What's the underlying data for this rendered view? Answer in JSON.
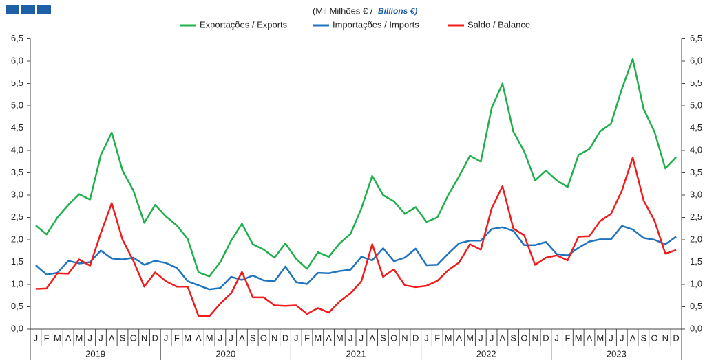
{
  "chart_data": {
    "type": "line",
    "subtitle": "(Mil Milhões € / ",
    "subtitle_en": "Billions €)",
    "categories": [
      "J",
      "F",
      "M",
      "A",
      "M",
      "J",
      "J",
      "A",
      "S",
      "O",
      "N",
      "D",
      "J",
      "F",
      "M",
      "A",
      "M",
      "J",
      "J",
      "A",
      "S",
      "O",
      "N",
      "D",
      "J",
      "F",
      "M",
      "A",
      "M",
      "J",
      "J",
      "A",
      "S",
      "O",
      "N",
      "D",
      "J",
      "F",
      "M",
      "A",
      "M",
      "J",
      "J",
      "A",
      "S",
      "O",
      "N",
      "D",
      "J",
      "F",
      "M",
      "A",
      "M",
      "J",
      "J",
      "A",
      "S",
      "O",
      "N",
      "D"
    ],
    "years": [
      "2019",
      "2020",
      "2021",
      "2022",
      "2023"
    ],
    "series": [
      {
        "name": "Exportações / Exports",
        "color": "#1fb04c",
        "values": [
          2.32,
          2.12,
          2.5,
          2.78,
          3.02,
          2.9,
          3.9,
          4.4,
          3.55,
          3.1,
          2.38,
          2.78,
          2.52,
          2.32,
          2.02,
          1.27,
          1.18,
          1.5,
          1.98,
          2.36,
          1.9,
          1.78,
          1.6,
          1.92,
          1.57,
          1.35,
          1.72,
          1.62,
          1.92,
          2.13,
          2.7,
          3.43,
          3.0,
          2.86,
          2.58,
          2.73,
          2.4,
          2.5,
          3.0,
          3.42,
          3.88,
          3.75,
          4.95,
          5.5,
          4.42,
          3.98,
          3.33,
          3.55,
          3.33,
          3.18,
          3.9,
          4.03,
          4.43,
          4.6,
          5.38,
          6.05,
          4.93,
          4.42,
          3.6,
          3.85
        ]
      },
      {
        "name": "Importações / Imports",
        "color": "#1f74c0",
        "values": [
          1.43,
          1.22,
          1.26,
          1.53,
          1.47,
          1.5,
          1.76,
          1.58,
          1.56,
          1.6,
          1.44,
          1.53,
          1.48,
          1.37,
          1.07,
          0.98,
          0.89,
          0.92,
          1.17,
          1.1,
          1.2,
          1.09,
          1.07,
          1.4,
          1.05,
          1.01,
          1.26,
          1.25,
          1.3,
          1.33,
          1.62,
          1.54,
          1.81,
          1.52,
          1.6,
          1.8,
          1.43,
          1.44,
          1.69,
          1.92,
          1.98,
          1.98,
          2.24,
          2.28,
          2.2,
          1.88,
          1.88,
          1.95,
          1.68,
          1.65,
          1.82,
          1.96,
          2.01,
          2.01,
          2.31,
          2.23,
          2.04,
          2.0,
          1.9,
          2.07
        ]
      },
      {
        "name": "Saldo / Balance",
        "color": "#ee1c1c",
        "values": [
          0.9,
          0.91,
          1.25,
          1.24,
          1.56,
          1.42,
          2.15,
          2.82,
          2.0,
          1.53,
          0.95,
          1.27,
          1.07,
          0.95,
          0.95,
          0.29,
          0.29,
          0.57,
          0.8,
          1.28,
          0.71,
          0.71,
          0.53,
          0.52,
          0.53,
          0.34,
          0.47,
          0.37,
          0.62,
          0.8,
          1.07,
          1.9,
          1.17,
          1.34,
          0.98,
          0.94,
          0.97,
          1.08,
          1.32,
          1.49,
          1.9,
          1.78,
          2.7,
          3.2,
          2.25,
          2.1,
          1.44,
          1.6,
          1.65,
          1.54,
          2.07,
          2.08,
          2.42,
          2.58,
          3.1,
          3.84,
          2.88,
          2.43,
          1.69,
          1.77
        ]
      }
    ],
    "ylim": [
      0,
      6.5
    ],
    "yticks": [
      {
        "value": 0,
        "label": "0,0"
      },
      {
        "value": 0.5,
        "label": "0,5"
      },
      {
        "value": 1,
        "label": "1,0"
      },
      {
        "value": 1.5,
        "label": "1,5"
      },
      {
        "value": 2,
        "label": "2,0"
      },
      {
        "value": 2.5,
        "label": "2,5"
      },
      {
        "value": 3,
        "label": "3,0"
      },
      {
        "value": 3.5,
        "label": "3,5"
      },
      {
        "value": 4,
        "label": "4,0"
      },
      {
        "value": 4.5,
        "label": "4,5"
      },
      {
        "value": 5,
        "label": "5,0"
      },
      {
        "value": 5.5,
        "label": "5,5"
      },
      {
        "value": 6,
        "label": "6,0"
      },
      {
        "value": 6.5,
        "label": "6,5"
      }
    ]
  }
}
